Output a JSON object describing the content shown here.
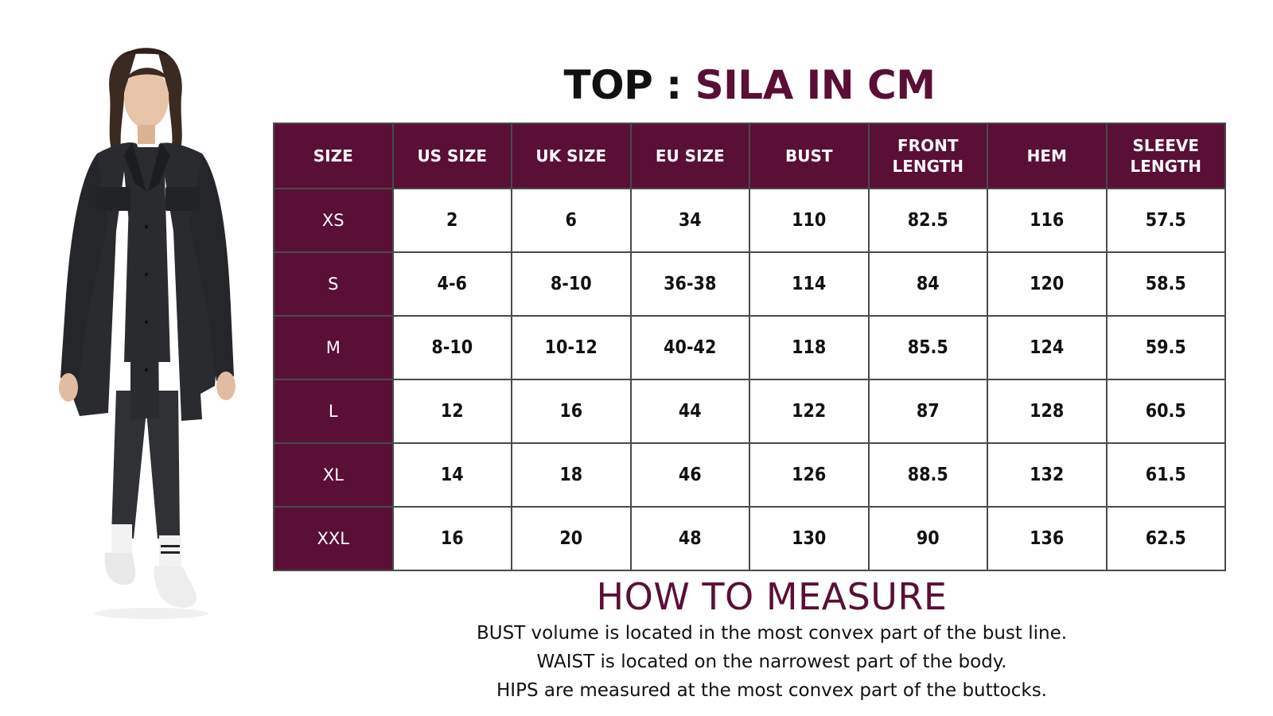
{
  "title": {
    "prefix": "TOP :",
    "accent": "SILA IN CM"
  },
  "colors": {
    "accent": "#5a0f36",
    "border": "#4a4a4a",
    "text": "#111111"
  },
  "table": {
    "headers": [
      "SIZE",
      "US SIZE",
      "UK SIZE",
      "EU SIZE",
      "BUST",
      "FRONT\nLENGTH",
      "HEM",
      "SLEEVE\nLENGTH"
    ],
    "rows": [
      {
        "size": "XS",
        "cells": [
          "2",
          "6",
          "34",
          "110",
          "82.5",
          "116",
          "57.5"
        ]
      },
      {
        "size": "S",
        "cells": [
          "4-6",
          "8-10",
          "36-38",
          "114",
          "84",
          "120",
          "58.5"
        ]
      },
      {
        "size": "M",
        "cells": [
          "8-10",
          "10-12",
          "40-42",
          "118",
          "85.5",
          "124",
          "59.5"
        ]
      },
      {
        "size": "L",
        "cells": [
          "12",
          "16",
          "44",
          "122",
          "87",
          "128",
          "60.5"
        ]
      },
      {
        "size": "XL",
        "cells": [
          "14",
          "18",
          "46",
          "126",
          "88.5",
          "132",
          "61.5"
        ]
      },
      {
        "size": "XXL",
        "cells": [
          "16",
          "20",
          "48",
          "130",
          "90",
          "136",
          "62.5"
        ]
      }
    ]
  },
  "measure": {
    "heading": "HOW TO MEASURE",
    "lines": [
      "BUST volume is located in the most convex part of the bust line.",
      "WAIST is located on the narrowest part of the body.",
      "HIPS are measured at the most convex part of the buttocks."
    ]
  }
}
